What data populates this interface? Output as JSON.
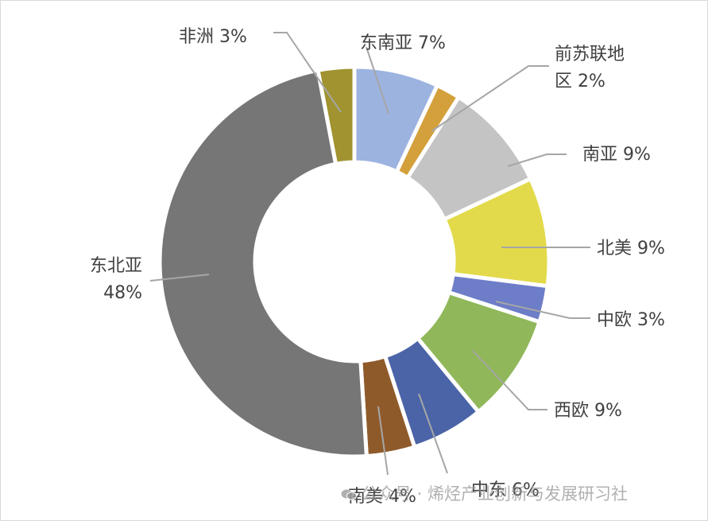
{
  "chart_data": {
    "type": "pie",
    "donut": true,
    "title": "",
    "slices": [
      {
        "name": "东南亚",
        "value": 7,
        "label_lines": [
          "东南亚 7%"
        ],
        "color": "#9cb3e0"
      },
      {
        "name": "前苏联地区",
        "value": 2,
        "label_lines": [
          "前苏联地",
          "区 2%"
        ],
        "color": "#d4a03c"
      },
      {
        "name": "南亚",
        "value": 9,
        "label_lines": [
          "南亚 9%"
        ],
        "color": "#c4c4c4"
      },
      {
        "name": "北美",
        "value": 9,
        "label_lines": [
          "北美 9%"
        ],
        "color": "#e2da4a"
      },
      {
        "name": "中欧",
        "value": 3,
        "label_lines": [
          "中欧 3%"
        ],
        "color": "#6d7dc8"
      },
      {
        "name": "西欧",
        "value": 9,
        "label_lines": [
          "西欧 9%"
        ],
        "color": "#90b85a"
      },
      {
        "name": "中东",
        "value": 6,
        "label_lines": [
          "中东 6%"
        ],
        "color": "#4b64a8"
      },
      {
        "name": "南美",
        "value": 4,
        "label_lines": [
          "南美 4%"
        ],
        "color": "#8f5a2a"
      },
      {
        "name": "东北亚",
        "value": 48,
        "label_lines": [
          "东北亚",
          "48%"
        ],
        "color": "#767676"
      },
      {
        "name": "非洲",
        "value": 3,
        "label_lines": [
          "非洲 3%"
        ],
        "color": "#a09330"
      }
    ]
  },
  "watermark": {
    "text": "公众号 · 烯烃产业创新与发展研习社",
    "icon": "wechat-icon"
  },
  "colors": {
    "leader_line": "#a6a6a6",
    "label_text": "#404040",
    "separator": "#ffffff"
  }
}
